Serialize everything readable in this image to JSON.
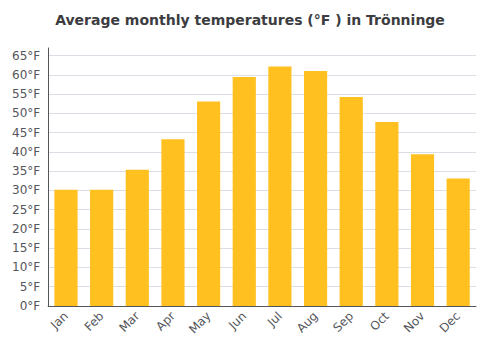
{
  "chart_data": {
    "type": "bar",
    "title": "Average monthly temperatures (°F ) in Trönninge",
    "categories": [
      "Jan",
      "Feb",
      "Mar",
      "Apr",
      "May",
      "Jun",
      "Jul",
      "Aug",
      "Sep",
      "Oct",
      "Nov",
      "Dec"
    ],
    "values": [
      30.2,
      30.2,
      35.4,
      43.3,
      53.1,
      59.5,
      62.2,
      61.0,
      54.3,
      47.8,
      39.4,
      33.1
    ],
    "color": "#FFC020",
    "ylim": [
      0,
      67
    ],
    "yticks": [
      {
        "value": 0,
        "label": "0°F"
      },
      {
        "value": 5,
        "label": "5°F"
      },
      {
        "value": 10,
        "label": "10°F"
      },
      {
        "value": 15,
        "label": "15°F"
      },
      {
        "value": 20,
        "label": "20°F"
      },
      {
        "value": 25,
        "label": "25°F"
      },
      {
        "value": 30,
        "label": "30°F"
      },
      {
        "value": 35,
        "label": "35°F"
      },
      {
        "value": 40,
        "label": "40°F"
      },
      {
        "value": 45,
        "label": "45°F"
      },
      {
        "value": 50,
        "label": "50°F"
      },
      {
        "value": 55,
        "label": "55°F"
      },
      {
        "value": 60,
        "label": "60°F"
      },
      {
        "value": 65,
        "label": "65°F"
      }
    ],
    "grid": true
  }
}
